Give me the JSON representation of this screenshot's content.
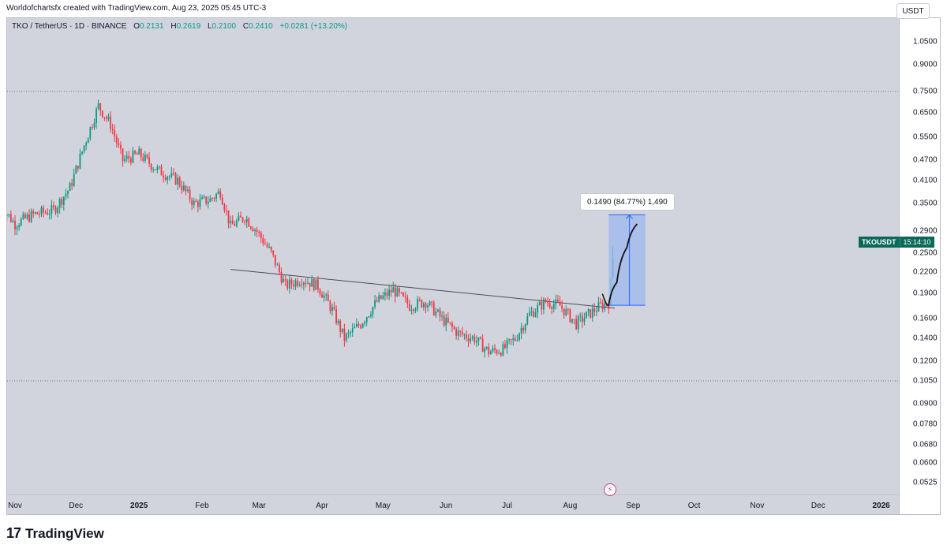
{
  "caption": "Worldofchartsfx created with TradingView.com, Aug 23, 2025 05:45 UTC-3",
  "symbol": {
    "title": "TKO / TetherUS · 1D · BINANCE",
    "open_label": "O",
    "open": "0.2131",
    "high_label": "H",
    "high": "0.2619",
    "low_label": "L",
    "low": "0.2100",
    "close_label": "C",
    "close": "0.2410",
    "change": "+0.0281 (+13.20%)"
  },
  "currency": "USDT",
  "ticker_tag": {
    "symbol": "TKOUSDT",
    "countdown": "15:14:10"
  },
  "measure": {
    "label": "0.1490 (84.77%) 1,490",
    "from": 0.1755,
    "to": 0.3245,
    "change": 0.149,
    "percent": 84.77
  },
  "brand": {
    "logo": "17",
    "name": "TradingView"
  },
  "event_icon": "lightning-icon",
  "colors": {
    "up": "#089981",
    "down": "#f23645",
    "background": "#d2d4dd",
    "measure_fill": "#9db8ef",
    "measure_line": "#2962ff",
    "ticker_bg": "#0a6a59"
  },
  "chart_data": {
    "type": "candlestick",
    "scale": "log",
    "price_ticks": [
      "1.0500",
      "0.9000",
      "0.7500",
      "0.6500",
      "0.5500",
      "0.4700",
      "0.4100",
      "0.3500",
      "0.2900",
      "0.2500",
      "0.2200",
      "0.1900",
      "0.1600",
      "0.1400",
      "0.1200",
      "0.1050",
      "0.0900",
      "0.0780",
      "0.0680",
      "0.0600",
      "0.0525"
    ],
    "time_ticks": [
      "Nov",
      "Dec",
      "2025",
      "Feb",
      "Mar",
      "Apr",
      "May",
      "Jun",
      "Jul",
      "Aug",
      "Sep",
      "Oct",
      "Nov",
      "Dec",
      "2026"
    ],
    "time_ticks_bold": [
      "2025",
      "2026"
    ],
    "horizontal_levels": [
      0.75,
      0.105
    ],
    "trendline": {
      "from": {
        "date": "2025-02-15",
        "price": 0.224
      },
      "to": {
        "date": "2025-08-23",
        "price": 0.172
      }
    },
    "price_path": [
      [
        "2024-10-25",
        0.345
      ],
      [
        "2024-11-01",
        0.305
      ],
      [
        "2024-11-10",
        0.325
      ],
      [
        "2024-11-20",
        0.335
      ],
      [
        "2024-11-28",
        0.39
      ],
      [
        "2024-12-05",
        0.52
      ],
      [
        "2024-12-12",
        0.68
      ],
      [
        "2024-12-18",
        0.6
      ],
      [
        "2024-12-24",
        0.47
      ],
      [
        "2025-01-01",
        0.49
      ],
      [
        "2025-01-10",
        0.44
      ],
      [
        "2025-01-20",
        0.41
      ],
      [
        "2025-01-28",
        0.35
      ],
      [
        "2025-02-05",
        0.36
      ],
      [
        "2025-02-10",
        0.38
      ],
      [
        "2025-02-15",
        0.3
      ],
      [
        "2025-02-22",
        0.32
      ],
      [
        "2025-02-28",
        0.29
      ],
      [
        "2025-03-07",
        0.25
      ],
      [
        "2025-03-14",
        0.2
      ],
      [
        "2025-03-22",
        0.21
      ],
      [
        "2025-03-30",
        0.2
      ],
      [
        "2025-04-06",
        0.17
      ],
      [
        "2025-04-12",
        0.14
      ],
      [
        "2025-04-20",
        0.155
      ],
      [
        "2025-04-28",
        0.18
      ],
      [
        "2025-05-06",
        0.195
      ],
      [
        "2025-05-14",
        0.175
      ],
      [
        "2025-05-22",
        0.18
      ],
      [
        "2025-05-30",
        0.16
      ],
      [
        "2025-06-07",
        0.145
      ],
      [
        "2025-06-15",
        0.14
      ],
      [
        "2025-06-22",
        0.128
      ],
      [
        "2025-06-29",
        0.13
      ],
      [
        "2025-07-05",
        0.14
      ],
      [
        "2025-07-12",
        0.165
      ],
      [
        "2025-07-20",
        0.18
      ],
      [
        "2025-07-27",
        0.175
      ],
      [
        "2025-08-04",
        0.155
      ],
      [
        "2025-08-10",
        0.165
      ],
      [
        "2025-08-16",
        0.175
      ],
      [
        "2025-08-20",
        0.178
      ],
      [
        "2025-08-21",
        0.205
      ],
      [
        "2025-08-22",
        0.235
      ],
      [
        "2025-08-23",
        0.241
      ]
    ],
    "projection": [
      [
        "2025-08-20",
        0.176
      ],
      [
        "2025-08-24",
        0.205
      ],
      [
        "2025-08-29",
        0.26
      ],
      [
        "2025-09-03",
        0.305
      ]
    ]
  }
}
